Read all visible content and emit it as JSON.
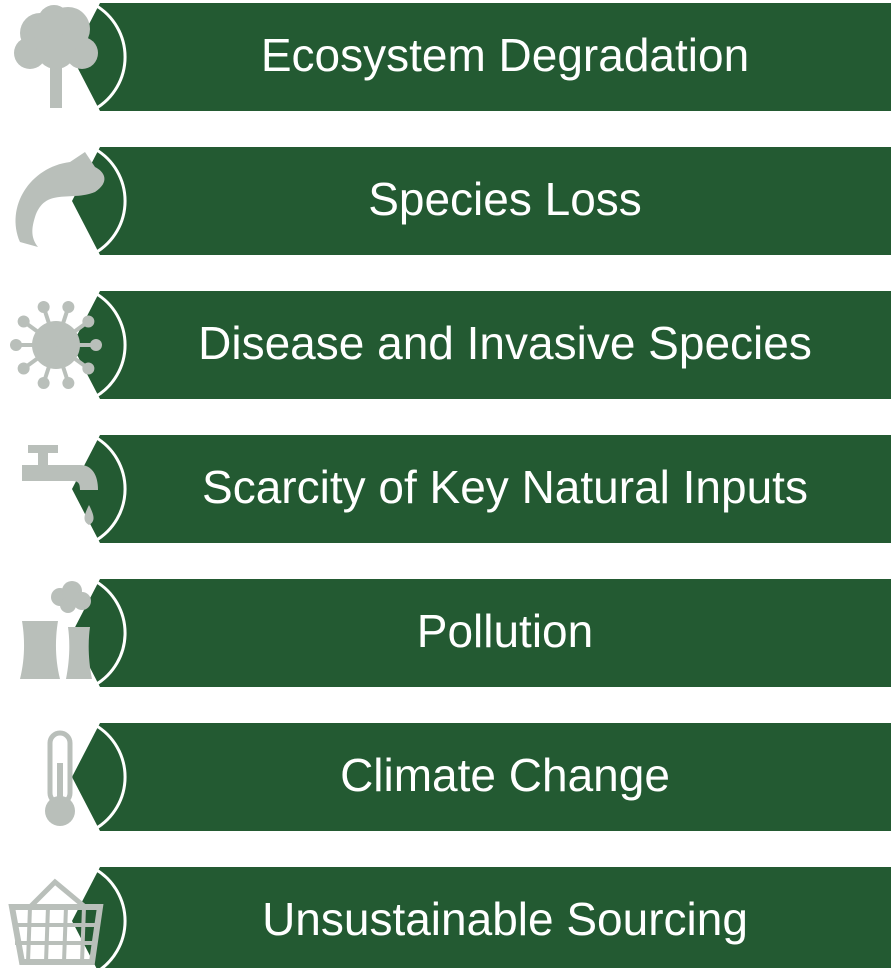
{
  "items": [
    {
      "label": "Ecosystem Degradation"
    },
    {
      "label": "Species Loss"
    },
    {
      "label": "Disease and Invasive Species"
    },
    {
      "label": "Scarcity of Key Natural Inputs"
    },
    {
      "label": "Pollution"
    },
    {
      "label": "Climate Change"
    },
    {
      "label": "Unsustainable Sourcing"
    }
  ]
}
